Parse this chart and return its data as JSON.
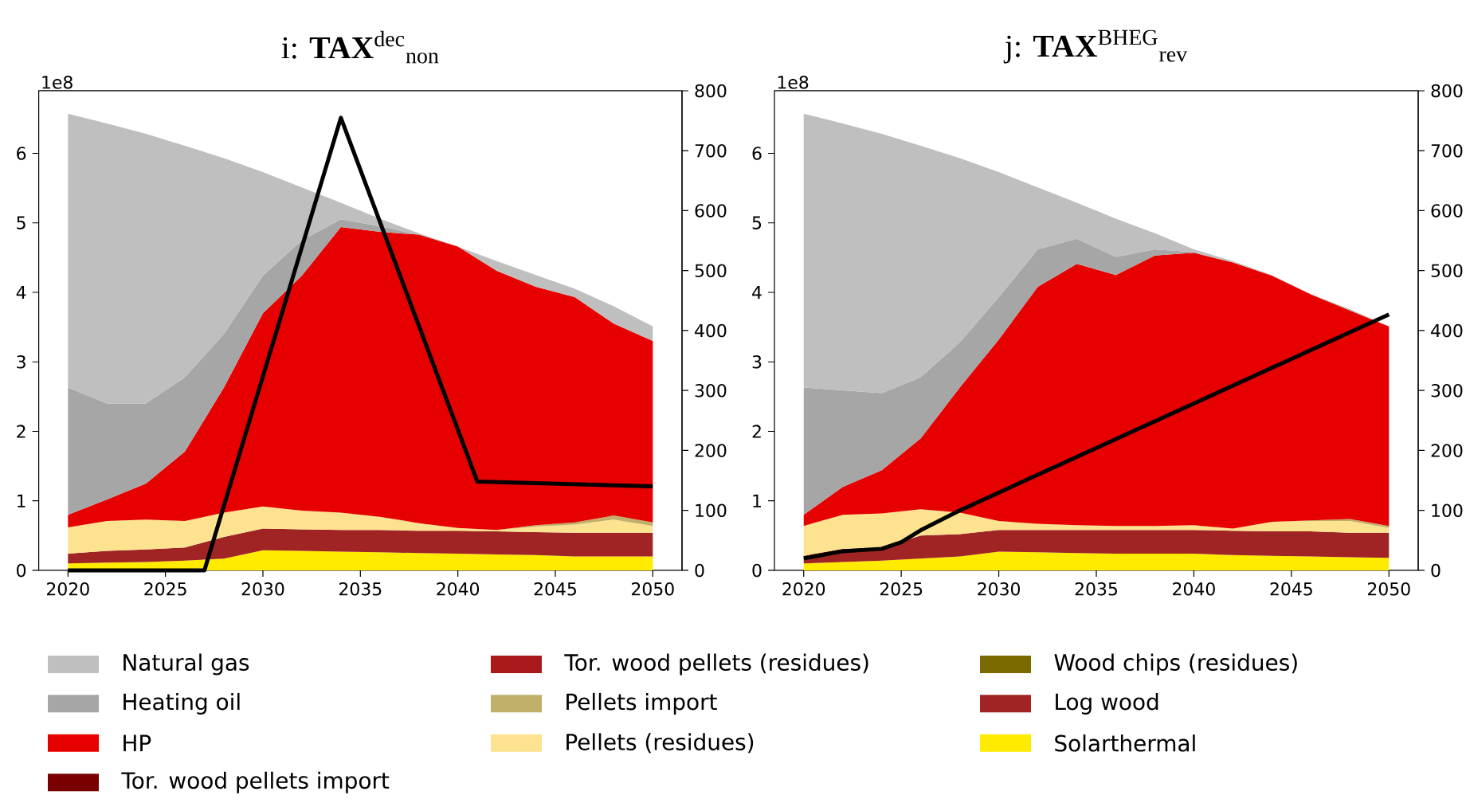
{
  "chart_data": [
    {
      "type": "area",
      "title": "i: **TAX**$^{dec}$$_{non}$",
      "annotations": [
        "1e8"
      ],
      "stacked": true,
      "legend": "bottom",
      "x": [
        2020,
        2022,
        2024,
        2026,
        2028,
        2030,
        2032,
        2034,
        2036,
        2038,
        2040,
        2042,
        2044,
        2046,
        2048,
        2050
      ],
      "xlim": [
        2018.5,
        2051.5
      ],
      "xticks": [
        2020,
        2025,
        2030,
        2035,
        2040,
        2045,
        2050
      ],
      "ylim": [
        0,
        6.9
      ],
      "yticks": [
        0,
        1,
        2,
        3,
        4,
        5,
        6
      ],
      "y2lim": [
        0,
        800
      ],
      "y2ticks": [
        0,
        100,
        200,
        300,
        400,
        500,
        600,
        700,
        800
      ],
      "series": [
        {
          "name": "Solarthermal",
          "color": "#ffeb00",
          "values": [
            0.1,
            0.11,
            0.12,
            0.14,
            0.17,
            0.29,
            0.28,
            0.27,
            0.26,
            0.25,
            0.24,
            0.23,
            0.22,
            0.2,
            0.2,
            0.2
          ]
        },
        {
          "name": "Log wood",
          "color": "#a02424",
          "values": [
            0.14,
            0.17,
            0.18,
            0.19,
            0.31,
            0.31,
            0.31,
            0.31,
            0.32,
            0.32,
            0.33,
            0.33,
            0.33,
            0.34,
            0.34,
            0.34
          ]
        },
        {
          "name": "Wood chips (residues)",
          "color": "#7a6a00",
          "values": [
            null,
            null,
            null,
            null,
            null,
            null,
            null,
            null,
            null,
            null,
            null,
            null,
            null,
            null,
            null,
            null
          ]
        },
        {
          "name": "Pellets (residues)",
          "color": "#fde28f",
          "values": [
            0.38,
            0.43,
            0.43,
            0.38,
            0.35,
            0.32,
            0.27,
            0.25,
            0.19,
            0.11,
            0.04,
            0.02,
            0.08,
            0.12,
            0.19,
            0.1
          ]
        },
        {
          "name": "Pellets import",
          "color": "#c0b06a",
          "values": [
            0,
            0,
            0,
            0,
            0,
            0,
            0,
            0,
            0,
            0,
            0,
            0,
            0.02,
            0.03,
            0.06,
            0.05
          ]
        },
        {
          "name": "Tor. wood pellets (residues)",
          "color": "#aa1a1a",
          "values": [
            null,
            null,
            null,
            null,
            null,
            null,
            null,
            null,
            null,
            null,
            null,
            null,
            null,
            null,
            null,
            null
          ]
        },
        {
          "name": "Tor. wood pellets import",
          "color": "#780000",
          "values": [
            null,
            null,
            null,
            null,
            null,
            null,
            null,
            null,
            null,
            null,
            null,
            null,
            null,
            null,
            null,
            null
          ]
        },
        {
          "name": "HP",
          "color": "#e60000",
          "values": [
            0.18,
            0.31,
            0.52,
            1.0,
            1.8,
            2.78,
            3.38,
            4.11,
            4.1,
            4.15,
            4.05,
            3.73,
            3.43,
            3.24,
            2.76,
            2.61
          ]
        },
        {
          "name": "Heating oil",
          "color": "#a6a6a6",
          "values": [
            1.83,
            1.38,
            1.15,
            1.07,
            0.77,
            0.54,
            0.51,
            0.11,
            0.08,
            0,
            0,
            0,
            0,
            0,
            0,
            0
          ]
        },
        {
          "name": "Natural gas",
          "color": "#bfbfbf",
          "values": [
            3.94,
            4.03,
            3.88,
            3.33,
            2.53,
            1.49,
            0.76,
            0.24,
            0.11,
            0.02,
            0,
            0.14,
            0.17,
            0.12,
            0.25,
            0.21
          ]
        },
        {
          "type": "line",
          "axis": "y2",
          "color": "#000000",
          "x": [
            2020,
            2027,
            2034,
            2041,
            2050
          ],
          "values": [
            0,
            0,
            755,
            148,
            140
          ]
        }
      ]
    },
    {
      "type": "area",
      "title": "j: **TAX**$^{BHEG}$$_{rev}$",
      "annotations": [
        "1e8"
      ],
      "stacked": true,
      "x": [
        2020,
        2022,
        2024,
        2026,
        2028,
        2030,
        2032,
        2034,
        2036,
        2038,
        2040,
        2042,
        2044,
        2046,
        2048,
        2050
      ],
      "xlim": [
        2018.5,
        2051.5
      ],
      "xticks": [
        2020,
        2025,
        2030,
        2035,
        2040,
        2045,
        2050
      ],
      "ylim": [
        0,
        6.9
      ],
      "yticks": [
        0,
        1,
        2,
        3,
        4,
        5,
        6
      ],
      "y2lim": [
        0,
        800
      ],
      "y2ticks": [
        0,
        100,
        200,
        300,
        400,
        500,
        600,
        700,
        800
      ],
      "series": [
        {
          "color": "#ffeb00",
          "values": [
            0.1,
            0.12,
            0.14,
            0.17,
            0.2,
            0.27,
            0.26,
            0.25,
            0.24,
            0.24,
            0.24,
            0.22,
            0.21,
            0.2,
            0.19,
            0.18
          ]
        },
        {
          "color": "#a02424",
          "values": [
            0.11,
            0.19,
            0.19,
            0.33,
            0.32,
            0.31,
            0.32,
            0.33,
            0.34,
            0.34,
            0.34,
            0.35,
            0.35,
            0.36,
            0.35,
            0.36
          ]
        },
        {
          "color": "#7a6a00",
          "values": [
            null,
            null,
            null,
            null,
            null,
            null,
            null,
            null,
            null,
            null,
            null,
            null,
            null,
            null,
            null,
            null
          ]
        },
        {
          "color": "#fde28f",
          "values": [
            0.43,
            0.49,
            0.49,
            0.38,
            0.31,
            0.13,
            0.09,
            0.07,
            0.06,
            0.06,
            0.07,
            0.03,
            0.14,
            0.15,
            0.17,
            0.07
          ]
        },
        {
          "color": "#c0b06a",
          "values": [
            0,
            0,
            0,
            0,
            0,
            0,
            0,
            0,
            0,
            0,
            0,
            0,
            0,
            0.01,
            0.03,
            0.03
          ]
        },
        {
          "color": "#aa1a1a",
          "values": [
            null,
            null,
            null,
            null,
            null,
            null,
            null,
            null,
            null,
            null,
            null,
            null,
            null,
            null,
            null,
            null
          ]
        },
        {
          "color": "#780000",
          "values": [
            null,
            null,
            null,
            null,
            null,
            null,
            null,
            null,
            null,
            null,
            null,
            null,
            null,
            null,
            null,
            null
          ]
        },
        {
          "color": "#e60000",
          "values": [
            0.16,
            0.4,
            0.62,
            1.02,
            1.8,
            2.61,
            3.41,
            3.76,
            3.61,
            3.89,
            3.92,
            3.83,
            3.54,
            3.25,
            3.0,
            2.87
          ]
        },
        {
          "color": "#a6a6a6",
          "values": [
            1.83,
            1.39,
            1.11,
            0.88,
            0.65,
            0.61,
            0.54,
            0.36,
            0.26,
            0.09,
            0.01,
            0,
            0,
            0,
            0,
            0
          ]
        },
        {
          "color": "#bfbfbf",
          "values": [
            3.94,
            3.84,
            3.73,
            3.33,
            2.65,
            1.8,
            0.89,
            0.52,
            0.55,
            0.23,
            0.04,
            0.02,
            0.01,
            0,
            0.02,
            0
          ]
        },
        {
          "type": "line",
          "axis": "y2",
          "color": "#000000",
          "x": [
            2020,
            2022,
            2024,
            2025,
            2026,
            2028,
            2050
          ],
          "values": [
            20,
            32,
            36,
            47,
            67,
            100,
            427
          ]
        }
      ]
    }
  ]
}
